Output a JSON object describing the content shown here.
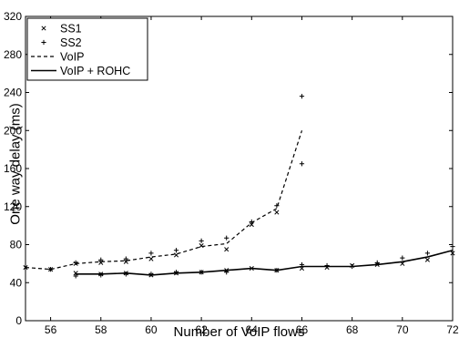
{
  "chart_data": {
    "type": "line",
    "title": "",
    "xlabel": "Number of VoIP flows",
    "ylabel": "One way delay (ms)",
    "xlim": [
      55,
      72
    ],
    "ylim": [
      0,
      320
    ],
    "xticks": [
      56,
      58,
      60,
      62,
      64,
      66,
      68,
      70,
      72
    ],
    "yticks": [
      0,
      40,
      80,
      120,
      160,
      200,
      240,
      280,
      320
    ],
    "grid": false,
    "legend_position": "top-left",
    "series": [
      {
        "name": "SS1",
        "style": "marker-x",
        "points": [
          [
            55,
            56
          ],
          [
            56,
            54
          ],
          [
            57,
            60
          ],
          [
            57,
            50
          ],
          [
            58,
            61
          ],
          [
            58,
            49
          ],
          [
            59,
            62
          ],
          [
            59,
            50
          ],
          [
            60,
            65
          ],
          [
            60,
            48
          ],
          [
            61,
            69
          ],
          [
            61,
            50
          ],
          [
            62,
            79
          ],
          [
            62,
            51
          ],
          [
            63,
            75
          ],
          [
            63,
            53
          ],
          [
            64,
            101
          ],
          [
            64,
            55
          ],
          [
            65,
            114
          ],
          [
            65,
            53
          ],
          [
            66,
            55
          ],
          [
            67,
            56
          ],
          [
            68,
            58
          ],
          [
            69,
            59
          ],
          [
            70,
            60
          ],
          [
            71,
            64
          ],
          [
            72,
            71
          ]
        ]
      },
      {
        "name": "SS2",
        "style": "marker-plus",
        "points": [
          [
            56,
            54
          ],
          [
            57,
            47
          ],
          [
            57,
            61
          ],
          [
            58,
            48
          ],
          [
            58,
            64
          ],
          [
            59,
            49
          ],
          [
            59,
            65
          ],
          [
            60,
            49
          ],
          [
            60,
            71
          ],
          [
            61,
            51
          ],
          [
            61,
            74
          ],
          [
            62,
            51
          ],
          [
            62,
            84
          ],
          [
            63,
            51
          ],
          [
            63,
            87
          ],
          [
            64,
            104
          ],
          [
            65,
            121
          ],
          [
            65,
            53
          ],
          [
            66,
            236
          ],
          [
            66,
            165
          ],
          [
            66,
            59
          ],
          [
            67,
            58
          ],
          [
            68,
            57
          ],
          [
            69,
            61
          ],
          [
            70,
            66
          ],
          [
            71,
            71
          ],
          [
            72,
            78
          ]
        ]
      },
      {
        "name": "VoIP",
        "style": "dashed",
        "x": [
          55,
          56,
          57,
          58,
          59,
          60,
          61,
          62,
          63,
          64,
          65,
          66
        ],
        "y": [
          56,
          54,
          60,
          62,
          63,
          67,
          70,
          78,
          81,
          103,
          118,
          200
        ]
      },
      {
        "name": "VoIP + ROHC",
        "style": "solid",
        "x": [
          57,
          58,
          59,
          60,
          61,
          62,
          63,
          64,
          65,
          66,
          67,
          68,
          69,
          70,
          71,
          72
        ],
        "y": [
          49,
          49,
          50,
          48,
          50,
          51,
          53,
          55,
          53,
          57,
          57,
          57,
          59,
          62,
          67,
          74
        ]
      }
    ]
  }
}
